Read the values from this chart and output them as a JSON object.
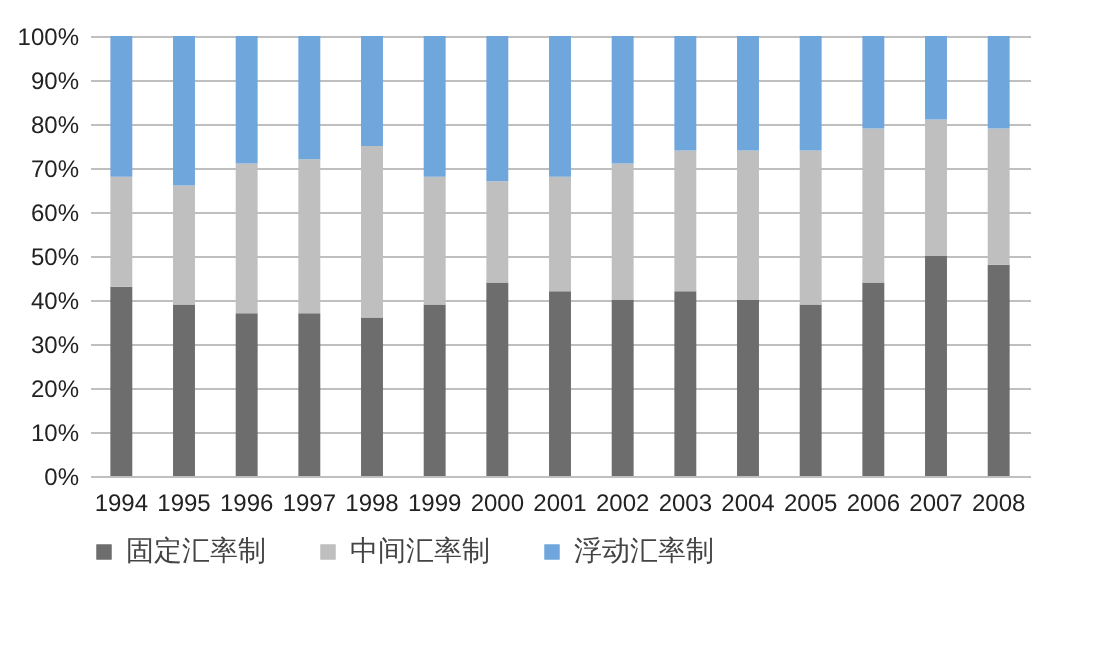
{
  "chart_data": {
    "type": "bar",
    "stacked": true,
    "categories": [
      "1994",
      "1995",
      "1996",
      "1997",
      "1998",
      "1999",
      "2000",
      "2001",
      "2002",
      "2003",
      "2004",
      "2005",
      "2006",
      "2007",
      "2008"
    ],
    "series": [
      {
        "name": "固定汇率制",
        "color": "#6d6d6d",
        "values": [
          43,
          39,
          37,
          37,
          36,
          39,
          44,
          42,
          40,
          42,
          40,
          39,
          44,
          50,
          48
        ]
      },
      {
        "name": "中间汇率制",
        "color": "#bfbfbf",
        "values": [
          25,
          27,
          34,
          35,
          39,
          29,
          23,
          26,
          31,
          32,
          34,
          35,
          35,
          31,
          31
        ]
      },
      {
        "name": "浮动汇率制",
        "color": "#6fa6dc",
        "values": [
          32,
          34,
          29,
          28,
          25,
          32,
          33,
          32,
          29,
          26,
          26,
          26,
          21,
          19,
          21
        ]
      }
    ],
    "ylim": [
      0,
      100
    ],
    "yticks": [
      {
        "value": 0,
        "label": "0%"
      },
      {
        "value": 10,
        "label": "10%"
      },
      {
        "value": 20,
        "label": "20%"
      },
      {
        "value": 30,
        "label": "30%"
      },
      {
        "value": 40,
        "label": "40%"
      },
      {
        "value": 50,
        "label": "50%"
      },
      {
        "value": 60,
        "label": "60%"
      },
      {
        "value": 70,
        "label": "70%"
      },
      {
        "value": 80,
        "label": "80%"
      },
      {
        "value": 90,
        "label": "90%"
      },
      {
        "value": 100,
        "label": "100%"
      }
    ],
    "grid": "y",
    "legend": "bottom"
  }
}
